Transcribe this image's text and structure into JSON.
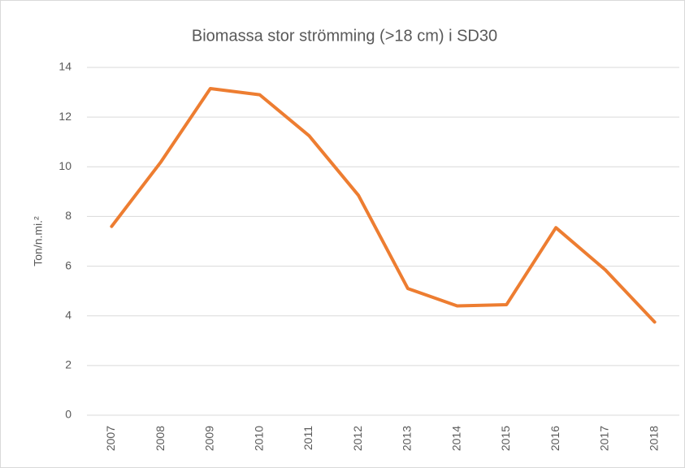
{
  "chart_data": {
    "type": "line",
    "title": "Biomassa stor strömming (>18 cm) i SD30",
    "y_label": "Ton/n.mi.²",
    "categories": [
      "2007",
      "2008",
      "2009",
      "2010",
      "2011",
      "2012",
      "2013",
      "2014",
      "2015",
      "2016",
      "2017",
      "2018"
    ],
    "series": [
      {
        "color": "#ed7d31",
        "values": [
          7.6,
          10.2,
          13.15,
          12.9,
          11.25,
          8.85,
          5.1,
          4.4,
          4.45,
          7.55,
          5.85,
          3.75
        ]
      }
    ],
    "ylim": [
      0,
      14
    ],
    "yticks": [
      0,
      2,
      4,
      6,
      8,
      10,
      12,
      14
    ],
    "grid": true
  }
}
